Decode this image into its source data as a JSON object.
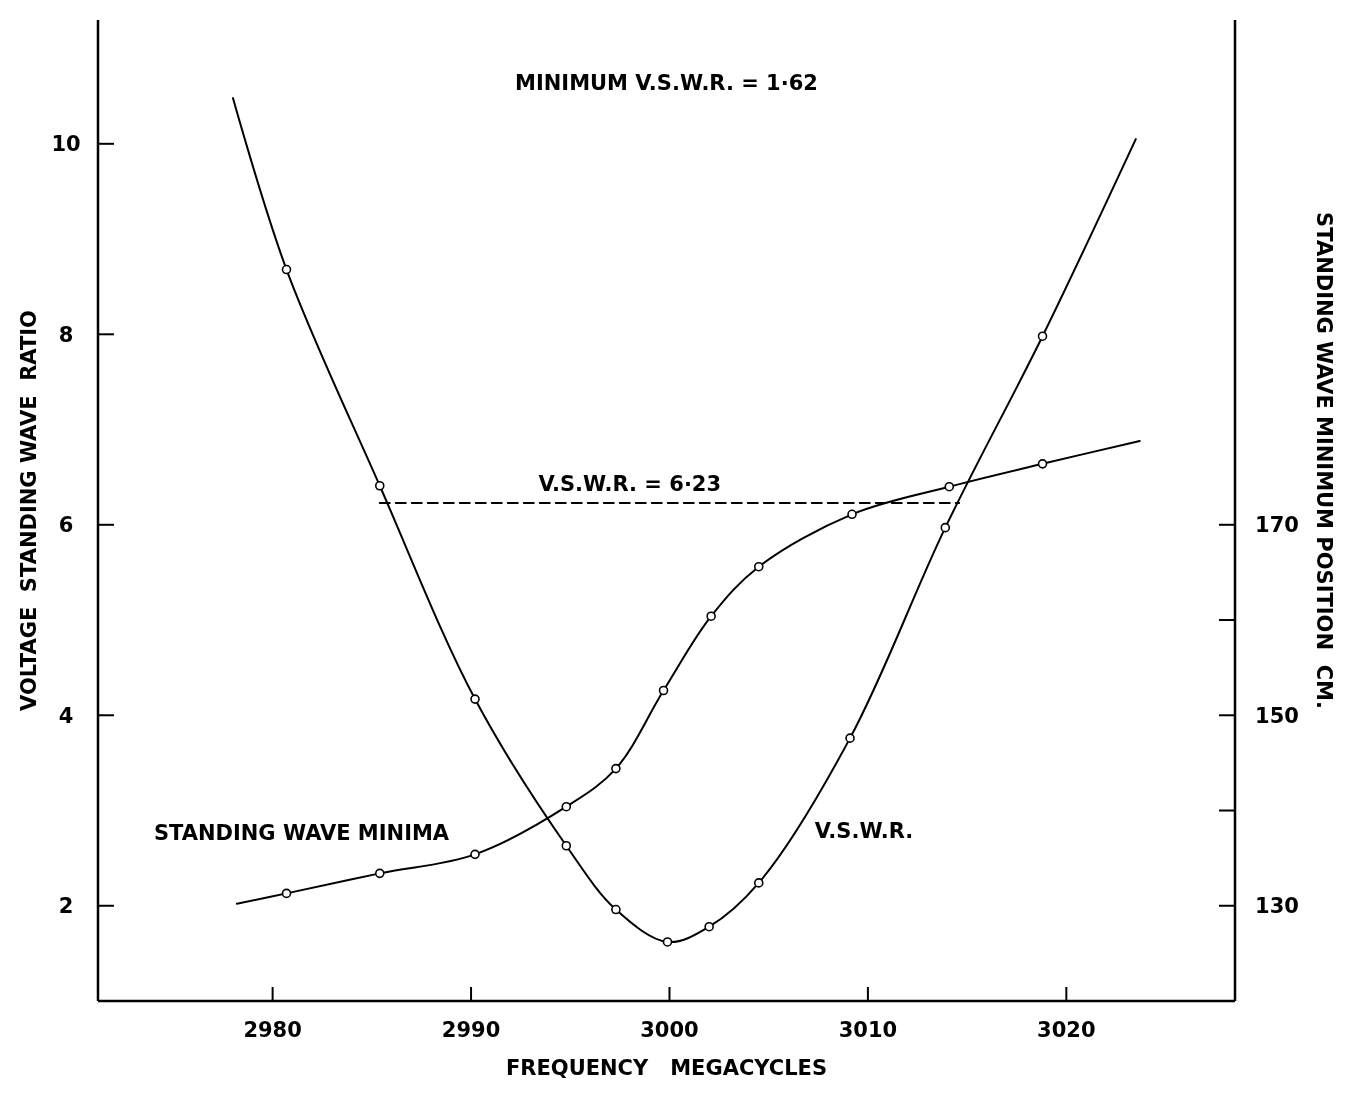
{
  "chart_data": {
    "type": "line",
    "xlabel": "FREQUENCY   MEGACYCLES",
    "ylabel": "VOLTAGE  STANDING WAVE  RATIO",
    "y2label": "STANDING WAVE MINIMUM POSITION  CM.",
    "xlim": [
      2971.2,
      3028.5
    ],
    "xticks": [
      2980,
      2990,
      3000,
      3010,
      3020
    ],
    "ylim": [
      1,
      11.3
    ],
    "yticks": [
      2,
      4,
      6,
      8,
      10
    ],
    "y2lim": [
      120,
      223
    ],
    "y2ticks": [
      130,
      {
        "value": 140,
        "label": null
      },
      150,
      {
        "value": 160,
        "label": null
      },
      170
    ],
    "grid": false,
    "series": [
      {
        "name": "V.S.W.R.",
        "marker": "none",
        "color": "#000000",
        "x": [
          2978.0,
          2980.7,
          2985.4,
          2990.2,
          2994.8,
          2997.3,
          2999.9,
          3002.0,
          3004.5,
          3009.1,
          3013.9,
          3018.8,
          3023.5
        ],
        "values": [
          10.48,
          8.68,
          6.41,
          4.17,
          2.63,
          1.96,
          1.62,
          1.78,
          2.24,
          3.76,
          5.97,
          7.98,
          10.05
        ]
      },
      {
        "name": "STANDING WAVE MINIMA",
        "marker": "none",
        "axis": "y2",
        "color": "#000000",
        "x": [
          2978.2,
          2980.7,
          2985.4,
          2990.2,
          2994.8,
          2997.3,
          2999.7,
          3002.1,
          3004.5,
          3009.2,
          3014.1,
          3018.8,
          3023.7
        ],
        "values": [
          130.2,
          131.3,
          133.4,
          135.4,
          140.4,
          144.4,
          152.6,
          160.4,
          165.6,
          171.1,
          174.0,
          176.4,
          178.8
        ]
      },
      {
        "type": "scatter",
        "marker": "circle",
        "color": "#000000",
        "x": [
          2980.7,
          2985.4,
          2990.2,
          2994.8,
          2997.3,
          2999.9,
          3002.0,
          3004.5,
          3009.1,
          3013.9,
          3018.8
        ],
        "values": [
          8.68,
          6.41,
          4.17,
          2.63,
          1.96,
          1.62,
          1.78,
          2.24,
          3.76,
          5.97,
          7.98
        ]
      },
      {
        "type": "scatter",
        "marker": "circle",
        "axis": "y2",
        "color": "#000000",
        "x": [
          2980.7,
          2985.4,
          2990.2,
          2994.8,
          2997.3,
          2999.7,
          3002.1,
          3004.5,
          3009.2,
          3014.1,
          3018.8
        ],
        "values": [
          131.3,
          133.4,
          135.4,
          140.4,
          144.4,
          152.6,
          160.4,
          165.6,
          171.1,
          174.0,
          176.4
        ]
      },
      {
        "marker": "none",
        "line_style": "dashed",
        "color": "#000000",
        "x": [
          2985.4,
          3014.6
        ],
        "values": [
          6.23,
          6.23
        ]
      }
    ],
    "annotations": [
      "MINIMUM   V.S.W.R. =  1·62",
      {
        "text": "V.S.W.R. = 6·23",
        "x": 2998,
        "y": 6.23
      }
    ]
  }
}
